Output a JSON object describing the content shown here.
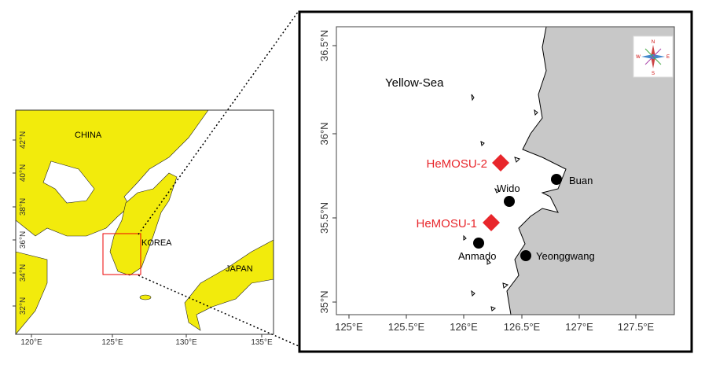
{
  "left_map": {
    "x_ticks": [
      "120°E",
      "125°E",
      "130°E",
      "135°E"
    ],
    "y_ticks": [
      "42°N",
      "40°N",
      "38°N",
      "36°N",
      "34°N",
      "32°N"
    ],
    "labels": {
      "china": "CHINA",
      "korea": "KOREA",
      "japan": "JAPAN"
    }
  },
  "right_map": {
    "x_ticks": [
      "125°E",
      "125.5°E",
      "126°E",
      "126.5°E",
      "127°E",
      "127.5°E"
    ],
    "y_ticks": [
      "36.5°N",
      "36°N",
      "35.5°N",
      "35°N"
    ],
    "sea_label": "Yellow-Sea",
    "stations": [
      "HeMOSU-2",
      "HeMOSU-1"
    ],
    "places": [
      "Wido",
      "Buan",
      "Anmado",
      "Yeonggwang"
    ],
    "compass": {
      "n": "N",
      "e": "E",
      "s": "S",
      "w": "W"
    }
  }
}
